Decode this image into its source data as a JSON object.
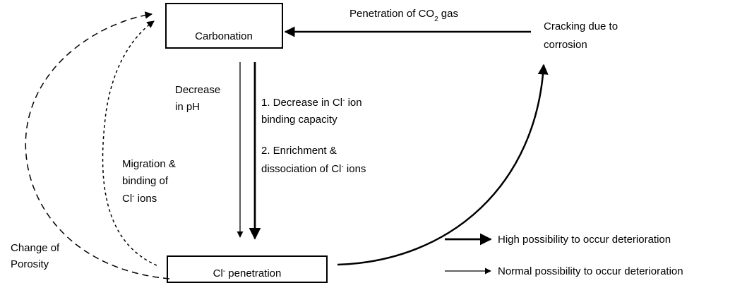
{
  "nodes": [
    {
      "label": [
        "Carbonation"
      ]
    },
    {
      "label": [
        "Cl",
        "-",
        " penetration"
      ]
    },
    {
      "label": [
        "Cracking due to",
        "corrosion"
      ]
    }
  ],
  "edges": [
    {
      "label": [
        [
          "Penetration of CO",
          "2",
          " gas"
        ]
      ]
    },
    {
      "label": [
        [
          "Decrease"
        ],
        [
          "in pH"
        ]
      ]
    },
    {
      "label": [
        [
          "1. Decrease in Cl",
          "-",
          " ion"
        ],
        [
          "binding capacity"
        ],
        [
          "2. Enrichment &"
        ],
        [
          "dissociation of Cl",
          "-",
          " ions"
        ]
      ]
    },
    {
      "label": [
        [
          "Migration &"
        ],
        [
          "binding of"
        ],
        [
          "Cl",
          "-",
          " ions"
        ]
      ]
    },
    {
      "label": [
        [
          "Change of"
        ],
        [
          "Porosity"
        ]
      ]
    }
  ],
  "legend": [
    "High possibility to occur deterioration",
    "Normal possibility to occur deterioration"
  ]
}
